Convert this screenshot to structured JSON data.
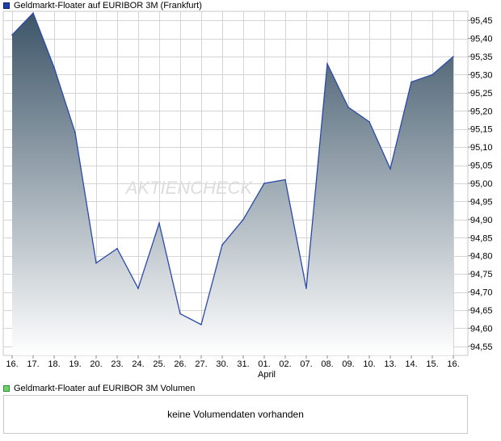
{
  "legend": {
    "price_label": "Geldmarkt-Floater auf EURIBOR 3M (Frankfurt)",
    "volume_label": "Geldmarkt-Floater auf EURIBOR 3M Volumen"
  },
  "watermark": "AKTIENCHECK",
  "volume_message": "keine Volumendaten vorhanden",
  "colors": {
    "line": "#2a4aa8",
    "area_top": "#3d5568",
    "area_bottom": "#ffffff",
    "grid": "#d4d4d4"
  },
  "chart_data": {
    "type": "area",
    "x": [
      "16.",
      "17.",
      "18.",
      "19.",
      "20.",
      "23.",
      "24.",
      "25.",
      "26.",
      "27.",
      "30.",
      "31.",
      "01.",
      "02.",
      "07.",
      "08.",
      "09.",
      "10.",
      "13.",
      "14.",
      "15.",
      "16."
    ],
    "x_sublabel": "April",
    "series": [
      {
        "name": "Geldmarkt-Floater auf EURIBOR 3M (Frankfurt)",
        "values": [
          95.41,
          95.47,
          95.32,
          95.14,
          94.78,
          94.82,
          94.71,
          94.89,
          94.64,
          94.61,
          94.83,
          94.9,
          95.0,
          95.01,
          94.71,
          95.33,
          95.21,
          95.17,
          95.04,
          95.28,
          95.3,
          95.35
        ]
      }
    ],
    "ylim": [
      94.525,
      95.475
    ],
    "yticks": [
      "94,55",
      "94,60",
      "94,65",
      "94,70",
      "94,75",
      "94,80",
      "94,85",
      "94,90",
      "94,95",
      "95,00",
      "95,05",
      "95,10",
      "95,15",
      "95,20",
      "95,25",
      "95,30",
      "95,35",
      "95,40",
      "95,45"
    ],
    "ytick_values": [
      94.55,
      94.6,
      94.65,
      94.7,
      94.75,
      94.8,
      94.85,
      94.9,
      94.95,
      95.0,
      95.05,
      95.1,
      95.15,
      95.2,
      95.25,
      95.3,
      95.35,
      95.4,
      95.45
    ],
    "grid": true
  }
}
